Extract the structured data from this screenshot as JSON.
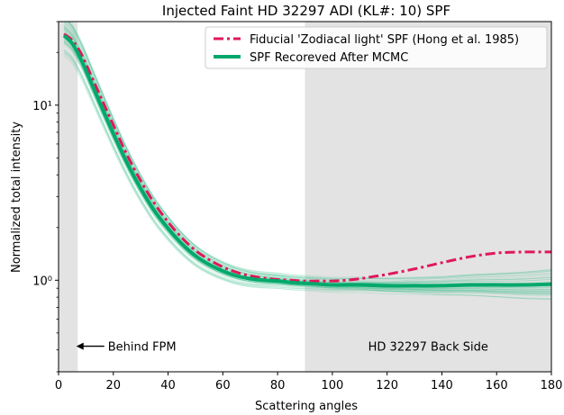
{
  "chart_data": {
    "type": "line",
    "title": "Injected Faint HD 32297 ADI (KL#: 10) SPF",
    "xlabel": "Scattering angles",
    "ylabel": "Normalized total intensity",
    "xlim": [
      0,
      180
    ],
    "ylim": [
      0.3,
      30
    ],
    "yscale": "log",
    "x_ticks": [
      0,
      20,
      40,
      60,
      80,
      100,
      120,
      140,
      160,
      180
    ],
    "y_ticks": [
      {
        "value": 1,
        "label": "10⁰"
      },
      {
        "value": 10,
        "label": "10¹"
      }
    ],
    "legend_position": "top-right",
    "shaded_regions": [
      {
        "x": [
          0,
          7
        ],
        "color": "#e3e3e3"
      },
      {
        "x": [
          90,
          180
        ],
        "color": "#e3e3e3"
      }
    ],
    "annotations": [
      {
        "text": "Behind FPM",
        "x": 18,
        "y": 0.42,
        "arrow_to_x": 6.5
      },
      {
        "text": "HD 32297 Back Side",
        "x": 135,
        "y": 0.42
      }
    ],
    "series": [
      {
        "name": "Fiducial 'Zodiacal light' SPF (Hong et al. 1985)",
        "color": "#e0185a",
        "style": "dashdot",
        "x": [
          2,
          5,
          8,
          10,
          15,
          20,
          25,
          30,
          35,
          40,
          45,
          50,
          55,
          60,
          65,
          70,
          75,
          80,
          85,
          90,
          95,
          100,
          105,
          110,
          115,
          120,
          130,
          140,
          150,
          160,
          170,
          180
        ],
        "y": [
          25.5,
          23.5,
          20,
          17.2,
          11.5,
          7.7,
          5.2,
          3.7,
          2.75,
          2.15,
          1.75,
          1.48,
          1.31,
          1.19,
          1.11,
          1.06,
          1.03,
          1.01,
          1.0,
          0.99,
          0.99,
          0.99,
          1.0,
          1.02,
          1.05,
          1.08,
          1.16,
          1.26,
          1.36,
          1.43,
          1.45,
          1.45
        ]
      },
      {
        "name": "SPF Recoreved After MCMC",
        "color": "#00a86b",
        "style": "solid",
        "x": [
          2,
          5,
          8,
          10,
          15,
          20,
          25,
          30,
          35,
          40,
          45,
          50,
          55,
          60,
          65,
          70,
          75,
          80,
          85,
          90,
          95,
          100,
          110,
          120,
          130,
          140,
          150,
          160,
          170,
          180
        ],
        "y": [
          25,
          22.5,
          18.5,
          15.8,
          10.4,
          6.9,
          4.7,
          3.35,
          2.5,
          1.98,
          1.62,
          1.38,
          1.23,
          1.13,
          1.06,
          1.02,
          1.0,
          0.99,
          0.97,
          0.96,
          0.95,
          0.94,
          0.94,
          0.93,
          0.93,
          0.93,
          0.94,
          0.94,
          0.94,
          0.95
        ]
      }
    ]
  }
}
